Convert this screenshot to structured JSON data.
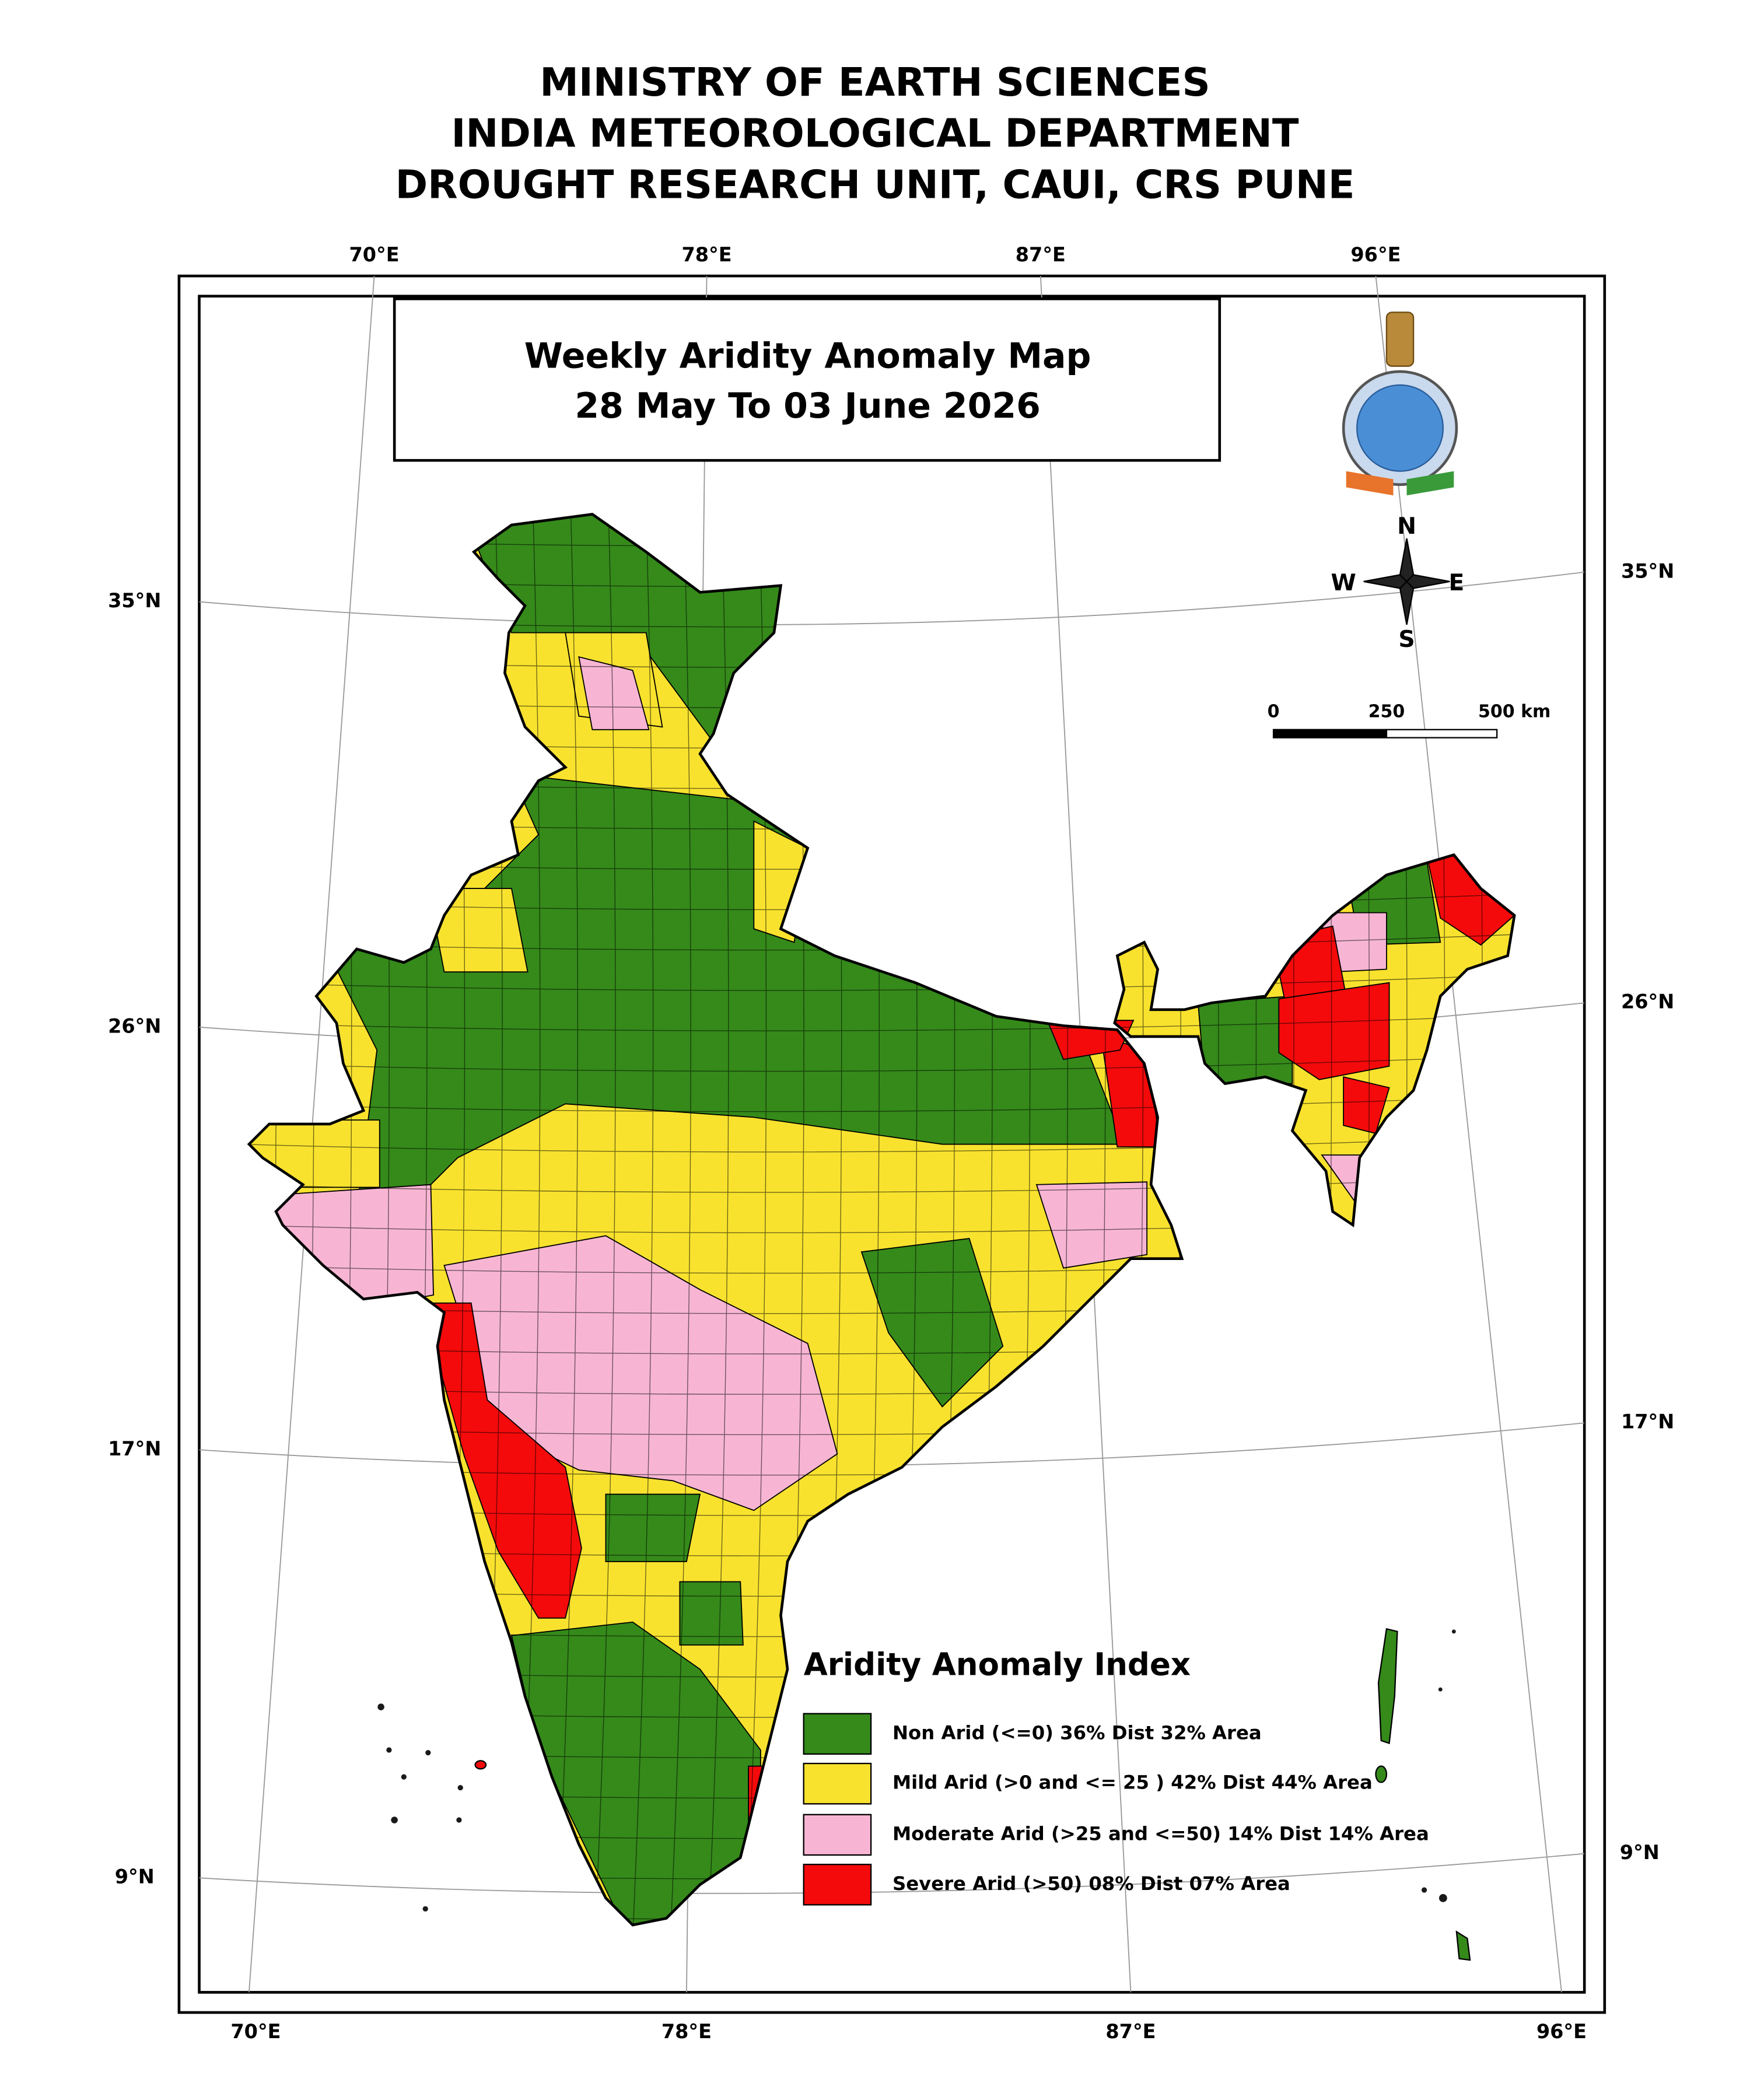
{
  "header": {
    "lines": [
      "MINISTRY OF EARTH SCIENCES",
      "INDIA METEOROLOGICAL DEPARTMENT",
      "DROUGHT RESEARCH UNIT, CAUI, CRS PUNE"
    ]
  },
  "map": {
    "title": "Weekly Aridity Anomaly Map",
    "subtitle": "28 May To 03 June 2026",
    "graticule": {
      "top": [
        "70°E",
        "78°E",
        "87°E",
        "96°E"
      ],
      "bottom": [
        "70°E",
        "78°E",
        "87°E",
        "96°E"
      ],
      "left": [
        "35°N",
        "26°N",
        "17°N",
        "9°N"
      ],
      "right": [
        "35°N",
        "26°N",
        "17°N",
        "9°N"
      ]
    },
    "compass": {
      "n": "N",
      "s": "S",
      "w": "W",
      "e": "E"
    },
    "scale_bar": {
      "labels": [
        "0",
        "250",
        "500 km"
      ]
    },
    "legend": {
      "title": "Aridity Anomaly Index",
      "items": [
        {
          "label": "Non Arid (<=0) 36% Dist 32% Area",
          "color": "#358a1a"
        },
        {
          "label": "Mild Arid (>0 and <= 25 ) 42% Dist  44% Area",
          "color": "#f8e22e"
        },
        {
          "label": "Moderate Arid (>25 and <=50) 14% Dist 14% Area",
          "color": "#f7b5d3"
        },
        {
          "label": "Severe Arid (>50) 08% Dist  07% Area",
          "color": "#f40a0a"
        }
      ]
    }
  }
}
